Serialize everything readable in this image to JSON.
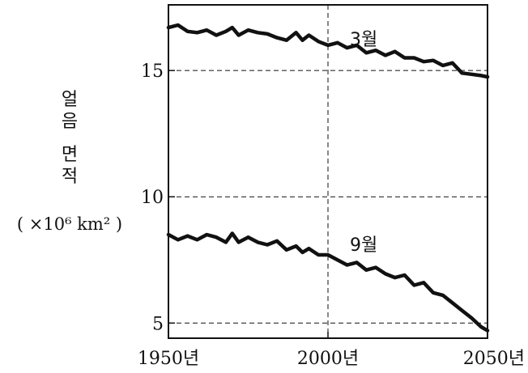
{
  "chart_data": {
    "type": "line",
    "title": "",
    "xlabel": "",
    "ylabel": "얼음 면적",
    "ylabel_unit": "( ×10⁶ km² )",
    "xlim": [
      1950,
      2050
    ],
    "ylim": [
      4.4,
      17.6
    ],
    "x_ticks": [
      {
        "value": 1950,
        "label": "1950년"
      },
      {
        "value": 2000,
        "label": "2000년"
      },
      {
        "value": 2050,
        "label": "2050년"
      }
    ],
    "y_ticks": [
      {
        "value": 5,
        "label": "5"
      },
      {
        "value": 10,
        "label": "10"
      },
      {
        "value": 15,
        "label": "15"
      }
    ],
    "grid": "dashed",
    "series": [
      {
        "name": "3월",
        "x": [
          1950,
          1953,
          1956,
          1959,
          1962,
          1965,
          1968,
          1970,
          1972,
          1975,
          1978,
          1981,
          1984,
          1987,
          1990,
          1992,
          1994,
          1997,
          2000,
          2003,
          2006,
          2009,
          2012,
          2015,
          2018,
          2021,
          2024,
          2027,
          2030,
          2033,
          2036,
          2039,
          2042,
          2045,
          2048,
          2050
        ],
        "y": [
          16.7,
          16.8,
          16.55,
          16.5,
          16.6,
          16.4,
          16.55,
          16.7,
          16.4,
          16.6,
          16.5,
          16.45,
          16.3,
          16.2,
          16.5,
          16.2,
          16.4,
          16.15,
          16.0,
          16.1,
          15.9,
          16.0,
          15.7,
          15.8,
          15.6,
          15.75,
          15.5,
          15.5,
          15.35,
          15.4,
          15.2,
          15.3,
          14.9,
          14.85,
          14.8,
          14.75
        ]
      },
      {
        "name": "9월",
        "x": [
          1950,
          1953,
          1956,
          1959,
          1962,
          1965,
          1968,
          1970,
          1972,
          1975,
          1978,
          1981,
          1984,
          1987,
          1990,
          1992,
          1994,
          1997,
          2000,
          2003,
          2006,
          2009,
          2012,
          2015,
          2018,
          2021,
          2024,
          2027,
          2030,
          2033,
          2036,
          2039,
          2042,
          2045,
          2048,
          2050
        ],
        "y": [
          8.5,
          8.3,
          8.45,
          8.3,
          8.5,
          8.4,
          8.2,
          8.55,
          8.2,
          8.4,
          8.2,
          8.1,
          8.25,
          7.9,
          8.05,
          7.8,
          7.95,
          7.7,
          7.7,
          7.5,
          7.3,
          7.4,
          7.1,
          7.2,
          6.95,
          6.8,
          6.9,
          6.5,
          6.6,
          6.2,
          6.1,
          5.8,
          5.5,
          5.2,
          4.85,
          4.7
        ]
      }
    ]
  }
}
